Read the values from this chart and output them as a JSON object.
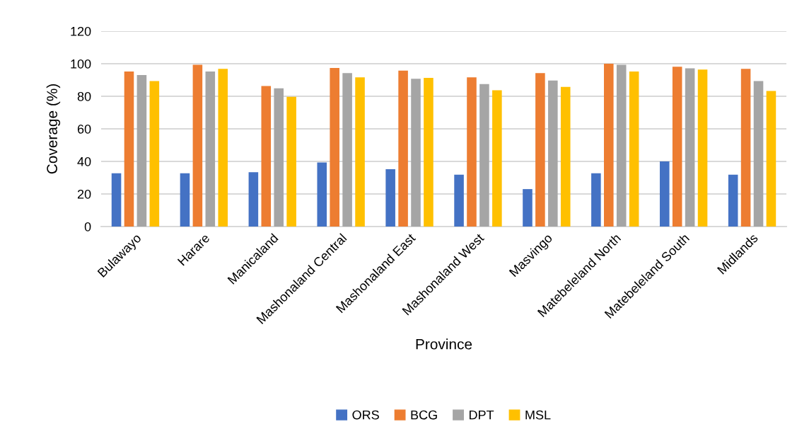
{
  "chart_data": {
    "type": "bar",
    "xlabel": "Province",
    "ylabel": "Coverage (%)",
    "categories": [
      "Bulawayo",
      "Harare",
      "Manicaland",
      "Mashonaland Central",
      "Mashonaland East",
      "Mashonaland West",
      "Masvingo",
      "Matebeleland North",
      "Matebeleland South",
      "Midlands"
    ],
    "series": [
      {
        "name": "ORS",
        "color": "#4472c4",
        "values": [
          32.7,
          32.7,
          33.4,
          39.4,
          35.2,
          31.8,
          23.0,
          32.7,
          40.0,
          31.8
        ]
      },
      {
        "name": "BCG",
        "color": "#ed7d31",
        "values": [
          95.2,
          99.4,
          86.3,
          97.4,
          95.8,
          91.6,
          94.2,
          100,
          98.1,
          96.9
        ]
      },
      {
        "name": "DPT",
        "color": "#a5a5a5",
        "values": [
          93.0,
          95.2,
          84.9,
          94.2,
          90.8,
          87.5,
          89.7,
          99.4,
          97.2,
          89.4
        ]
      },
      {
        "name": "MSL",
        "color": "#ffc000",
        "values": [
          89.4,
          96.9,
          79.7,
          91.6,
          91.3,
          83.7,
          85.8,
          95.2,
          96.4,
          83.3
        ]
      }
    ],
    "ylim": [
      0,
      120
    ],
    "yticks": [
      0,
      20,
      40,
      60,
      80,
      100,
      120
    ],
    "grid": "y",
    "legend": "bottom"
  }
}
